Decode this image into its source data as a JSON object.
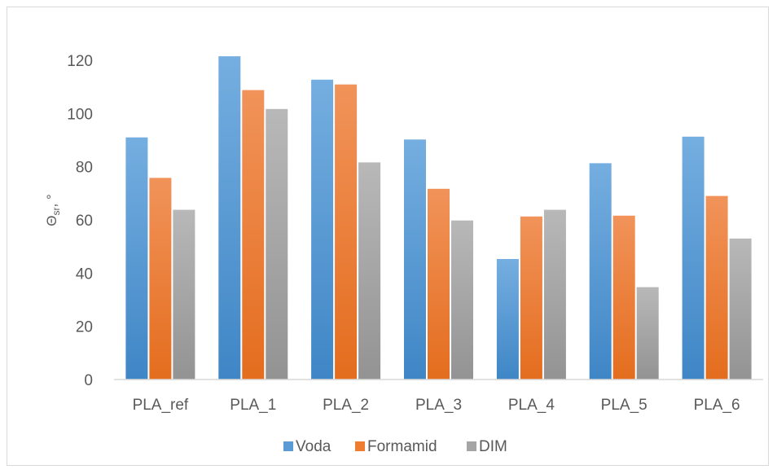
{
  "chart_data": {
    "type": "bar",
    "title": "",
    "xlabel": "",
    "ylabel": "Θsr, °",
    "ylabel_main": "Θ",
    "ylabel_sub": "sr",
    "ylabel_suffix": ", °",
    "categories": [
      "PLA_ref",
      "PLA_1",
      "PLA_2",
      "PLA_3",
      "PLA_4",
      "PLA_5",
      "PLA_6"
    ],
    "series": [
      {
        "name": "Voda",
        "color": "#5b9bd5",
        "values": [
          91,
          121.5,
          112.7,
          90.2,
          45.3,
          81.3,
          91.3
        ]
      },
      {
        "name": "Formamid",
        "color": "#ed7d31",
        "values": [
          75.8,
          108.8,
          110.9,
          71.7,
          61.3,
          61.6,
          69
        ]
      },
      {
        "name": "DIM",
        "color": "#a5a5a5",
        "values": [
          63.8,
          101.7,
          81.6,
          59.8,
          63.8,
          34.7,
          53
        ]
      }
    ],
    "yticks": [
      0,
      20,
      40,
      60,
      80,
      100,
      120
    ],
    "ylim": [
      0,
      130
    ],
    "grid": false,
    "legend_position": "bottom"
  }
}
